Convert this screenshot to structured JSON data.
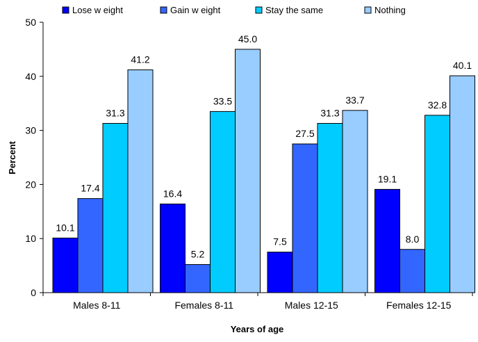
{
  "chart_data": {
    "type": "bar",
    "title": "",
    "xlabel": "Years of age",
    "ylabel": "Percent",
    "ylim": [
      0,
      50
    ],
    "yticks": [
      0,
      10,
      20,
      30,
      40,
      50
    ],
    "grid": false,
    "legend_position": "top",
    "categories": [
      "Males 8-11",
      "Females 8-11",
      "Males 12-15",
      "Females 12-15"
    ],
    "series": [
      {
        "name": "Lose w eight",
        "color": "#0000ff",
        "values": [
          10.1,
          16.4,
          7.5,
          19.1
        ],
        "labels": [
          "10.1",
          "16.4",
          "7.5",
          "19.1"
        ]
      },
      {
        "name": "Gain w eight",
        "color": "#3366ff",
        "values": [
          17.4,
          5.2,
          27.5,
          8.0
        ],
        "labels": [
          "17.4",
          "5.2",
          "27.5",
          "8.0"
        ]
      },
      {
        "name": "Stay the same",
        "color": "#00ccff",
        "values": [
          31.3,
          33.5,
          31.3,
          32.8
        ],
        "labels": [
          "31.3",
          "33.5",
          "31.3",
          "32.8"
        ]
      },
      {
        "name": "Nothing",
        "color": "#99ccff",
        "values": [
          41.2,
          45.0,
          33.7,
          40.1
        ],
        "labels": [
          "41.2",
          "45.0",
          "33.7",
          "40.1"
        ]
      }
    ]
  }
}
